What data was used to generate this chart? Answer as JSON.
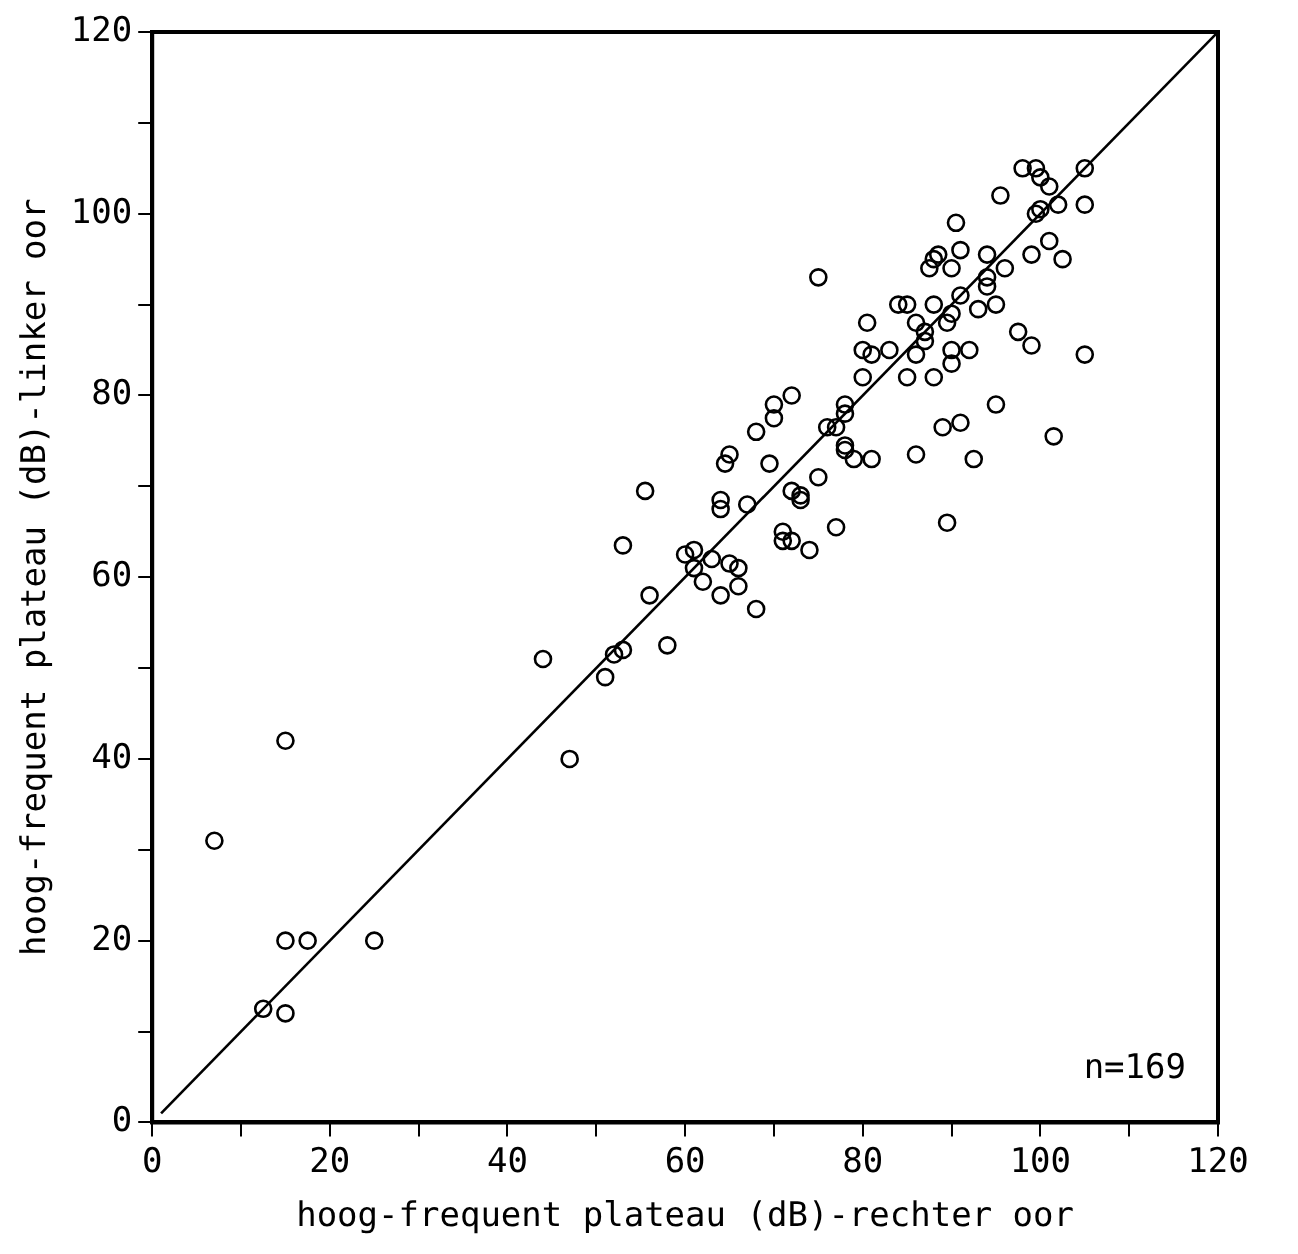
{
  "chart_data": {
    "type": "scatter",
    "xlabel": "hoog-frequent plateau (dB)-rechter oor",
    "ylabel": "hoog-frequent plateau (dB)-linker oor",
    "xlim": [
      0,
      120
    ],
    "ylim": [
      0,
      120
    ],
    "xticks": [
      0,
      {
        "value": 10,
        "label": null
      },
      20,
      {
        "value": 30,
        "label": null
      },
      40,
      {
        "value": 50,
        "label": null
      },
      60,
      {
        "value": 70,
        "label": null
      },
      80,
      {
        "value": 90,
        "label": null
      },
      100,
      {
        "value": 110,
        "label": null
      },
      120
    ],
    "yticks": [
      0,
      {
        "value": 10,
        "label": null
      },
      20,
      {
        "value": 30,
        "label": null
      },
      40,
      {
        "value": 50,
        "label": null
      },
      60,
      {
        "value": 70,
        "label": null
      },
      80,
      {
        "value": 90,
        "label": null
      },
      100,
      {
        "value": 110,
        "label": null
      },
      120
    ],
    "grid": false,
    "legend": false,
    "annotations": [
      "n=169"
    ],
    "series": [
      {
        "marker": "circle",
        "color": "#000000",
        "x": [
          7,
          15,
          15,
          17.5,
          25,
          12.5,
          15,
          44,
          47,
          51,
          52,
          53,
          58,
          53,
          55.5,
          56,
          60,
          61,
          61,
          62,
          63,
          64,
          64,
          64,
          64.5,
          65,
          65,
          66,
          66,
          67,
          68,
          68,
          69.5,
          70,
          70,
          71,
          71,
          72,
          72,
          72,
          73,
          73,
          74,
          75,
          75,
          76,
          77,
          77,
          78,
          78,
          78,
          78,
          79,
          80,
          80,
          80.5,
          81,
          81,
          83,
          84,
          85,
          85,
          86,
          86,
          86,
          87,
          87,
          87.5,
          88,
          88,
          88,
          88.5,
          89,
          89.5,
          89.5,
          90,
          90,
          90,
          90,
          90.5,
          91,
          91,
          91,
          92,
          92.5,
          93,
          94,
          94,
          94,
          95,
          95,
          95.5,
          96,
          97.5,
          98,
          99,
          99,
          99.5,
          99.5,
          100,
          100,
          101,
          101,
          101.5,
          102,
          102.5,
          105,
          105,
          105
        ],
        "values": [
          31,
          42,
          20,
          20,
          20,
          12.5,
          12,
          51,
          40,
          49,
          51.5,
          52,
          52.5,
          63.5,
          69.5,
          58,
          62.5,
          63,
          61,
          59.5,
          62,
          58,
          68.5,
          67.5,
          72.5,
          73.5,
          61.5,
          61,
          59,
          68,
          56.5,
          76,
          72.5,
          77.5,
          79,
          64,
          65,
          69.5,
          80,
          64,
          69,
          68.5,
          63,
          93,
          71,
          76.5,
          76.5,
          65.5,
          74,
          74.5,
          78,
          79,
          73,
          85,
          82,
          88,
          73,
          84.5,
          85,
          90,
          90,
          82,
          88,
          84.5,
          73.5,
          87,
          86,
          94,
          95,
          90,
          82,
          95.5,
          76.5,
          88,
          66,
          94,
          89,
          85,
          83.5,
          99,
          96,
          77,
          91,
          85,
          73,
          89.5,
          95.5,
          92,
          93,
          90,
          79,
          102,
          94,
          87,
          105,
          95.5,
          85.5,
          105,
          100,
          104,
          100.5,
          103,
          97,
          75.5,
          101,
          95,
          105,
          101,
          84.5
        ]
      },
      {
        "type": "line",
        "color": "#000000",
        "x": [
          1,
          120
        ],
        "values": [
          1,
          120
        ]
      }
    ]
  }
}
